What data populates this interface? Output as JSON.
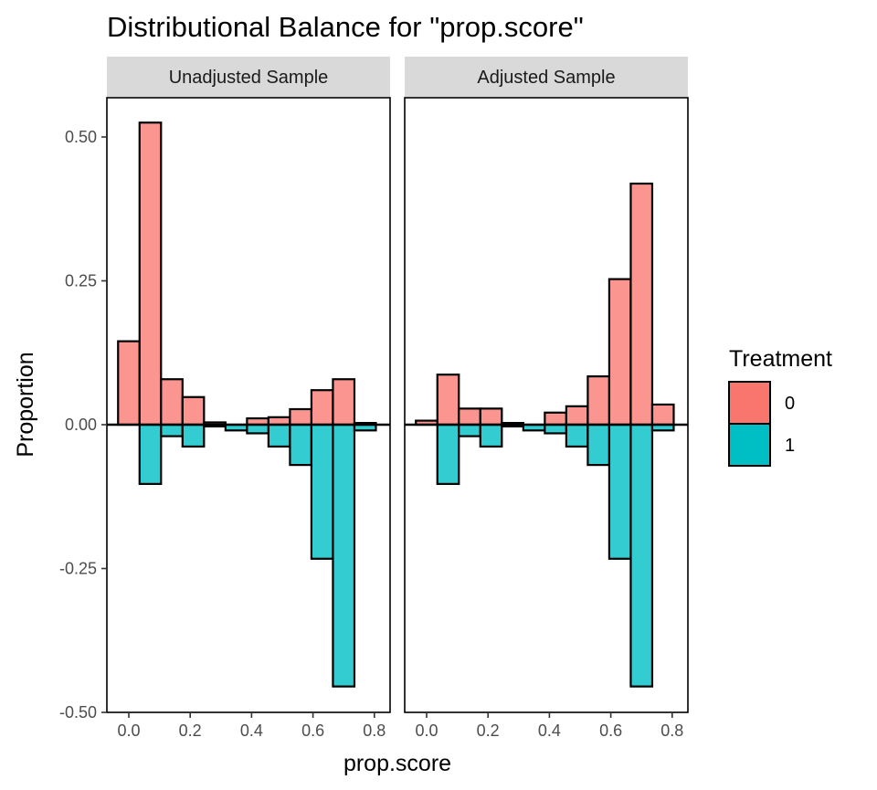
{
  "title": "Distributional Balance for \"prop.score\"",
  "xlabel": "prop.score",
  "ylabel": "Proportion",
  "legend": {
    "title": "Treatment",
    "entries": [
      {
        "label": "0",
        "color": "#F8766D"
      },
      {
        "label": "1",
        "color": "#00BFC4"
      }
    ]
  },
  "chart_data": {
    "type": "bar",
    "subtype": "mirrored-histogram",
    "ylim": [
      -0.5,
      0.5
    ],
    "y_ticks": [
      0.5,
      0.25,
      0.0,
      -0.25,
      -0.5
    ],
    "y_tick_labels": [
      "0.50",
      "0.25",
      "0.00",
      "-0.25",
      "-0.50"
    ],
    "x_ticks": [
      0.0,
      0.2,
      0.4,
      0.6,
      0.8
    ],
    "x_tick_labels": [
      "0.0",
      "0.2",
      "0.4",
      "0.6",
      "0.8"
    ],
    "bin_centers": [
      0.0,
      0.07,
      0.14,
      0.21,
      0.28,
      0.35,
      0.42,
      0.49,
      0.56,
      0.63,
      0.7,
      0.77
    ],
    "grid": false,
    "legend_position": "right",
    "panels": [
      {
        "name": "Unadjusted Sample",
        "series": [
          {
            "name": "0",
            "values": [
              0.145,
              0.525,
              0.079,
              0.048,
              0.004,
              0.0,
              0.011,
              0.013,
              0.027,
              0.06,
              0.079,
              0.003
            ]
          },
          {
            "name": "1",
            "values": [
              0.0,
              -0.103,
              -0.02,
              -0.038,
              -0.003,
              -0.01,
              -0.015,
              -0.038,
              -0.07,
              -0.233,
              -0.455,
              -0.01
            ]
          }
        ]
      },
      {
        "name": "Adjusted Sample",
        "series": [
          {
            "name": "0",
            "values": [
              0.007,
              0.087,
              0.028,
              0.028,
              0.003,
              0.0,
              0.021,
              0.032,
              0.084,
              0.253,
              0.419,
              0.035
            ]
          },
          {
            "name": "1",
            "values": [
              0.0,
              -0.103,
              -0.02,
              -0.038,
              -0.003,
              -0.01,
              -0.015,
              -0.038,
              -0.07,
              -0.233,
              -0.455,
              -0.01
            ]
          }
        ]
      }
    ]
  }
}
